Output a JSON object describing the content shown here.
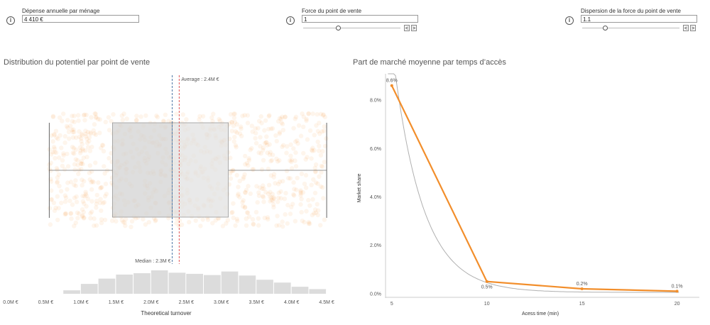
{
  "params": [
    {
      "label": "Dépense annuelle par ménage",
      "value": "4 410 €",
      "info_icon": "info-icon",
      "slider": false
    },
    {
      "label": "Force du point de vente",
      "value": "1",
      "info_icon": "info-icon",
      "slider": true,
      "slider_level": 0.36,
      "prev": "<",
      "next": ">"
    },
    {
      "label": "Dispersion de la force du point de vente",
      "value": "1.1",
      "info_icon": "info-icon",
      "slider": true,
      "slider_level": 0.23,
      "prev": "<",
      "next": ">"
    }
  ],
  "chart_data": [
    {
      "type": "box",
      "title": "Distribution du potentiel par point de vente",
      "xlabel": "Theoretical turnover",
      "x_ticks": [
        "0.0M €",
        "0.5M €",
        "1.0M €",
        "1.5M €",
        "2.0M €",
        "2.5M €",
        "3.0M €",
        "3.5M €",
        "4.0M €",
        "4.5M €"
      ],
      "x_tick_values": [
        0,
        0.5,
        1.0,
        1.5,
        2.0,
        2.5,
        3.0,
        3.5,
        4.0,
        4.5
      ],
      "xlim": [
        0,
        4.6
      ],
      "box": {
        "min": 0.55,
        "q1": 1.45,
        "median": 2.3,
        "q3": 3.1,
        "max": 4.5
      },
      "reference_lines": [
        {
          "label": "Average : 2.4M €",
          "value": 2.4,
          "color": "#e15759",
          "style": "dashed"
        },
        {
          "label": "Median : 2.3M €",
          "value": 2.3,
          "color": "#4e79a7",
          "style": "dashed"
        }
      ],
      "histogram": {
        "bin_starts": [
          0.75,
          1.0,
          1.25,
          1.5,
          1.75,
          2.0,
          2.25,
          2.5,
          2.75,
          3.0,
          3.25,
          3.5,
          3.75,
          4.0,
          4.25
        ],
        "bin_width": 0.25,
        "relative_counts": [
          0.15,
          0.42,
          0.65,
          0.82,
          0.88,
          1.0,
          0.9,
          0.85,
          0.8,
          0.95,
          0.78,
          0.6,
          0.48,
          0.3,
          0.2
        ]
      },
      "point_color": "#f28e2b"
    },
    {
      "type": "line",
      "title": "Part de marché moyenne par temps d’accès",
      "xlabel": "Acess time (min)",
      "ylabel": "Market share",
      "x_ticks": [
        5,
        10,
        15,
        20
      ],
      "xlim": [
        4,
        20.5
      ],
      "y_ticks": [
        "0.0%",
        "2.0%",
        "4.0%",
        "6.0%",
        "8.0%"
      ],
      "y_tick_values": [
        0,
        2,
        4,
        6,
        8
      ],
      "ylim": [
        -0.3,
        9.0
      ],
      "series": [
        {
          "x": [
            5,
            10,
            15,
            20
          ],
          "values": [
            8.6,
            0.5,
            0.2,
            0.1
          ],
          "labels": [
            "8.6%",
            "0.5%",
            "0.2%",
            "0.1%"
          ],
          "color": "#f28e2b"
        }
      ],
      "trend_curve": {
        "color": "#b0b0b0",
        "form": "exponential decay"
      }
    }
  ]
}
